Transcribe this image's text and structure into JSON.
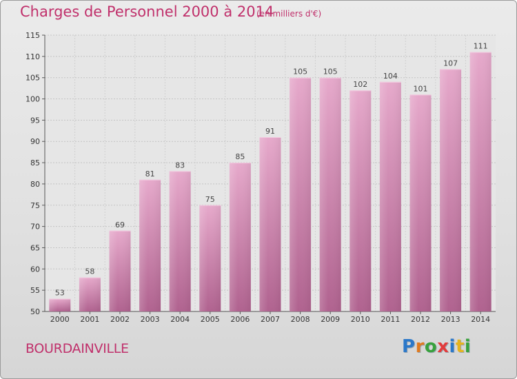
{
  "chart_data": {
    "type": "bar",
    "title": "Charges de Personnel 2000 à 2014",
    "subtitle": "(en milliers d'€)",
    "categories": [
      "2000",
      "2001",
      "2002",
      "2003",
      "2004",
      "2005",
      "2006",
      "2007",
      "2008",
      "2009",
      "2010",
      "2011",
      "2012",
      "2013",
      "2014"
    ],
    "values": [
      53,
      58,
      69,
      81,
      83,
      75,
      85,
      91,
      105,
      105,
      102,
      104,
      101,
      107,
      111
    ],
    "ylim": [
      50,
      115
    ],
    "yticks": [
      "50",
      "55",
      "60",
      "65",
      "70",
      "75",
      "80",
      "85",
      "90",
      "95",
      "100",
      "105",
      "110",
      "115"
    ],
    "grid": true,
    "bar_color": "#d98cb6"
  },
  "place_name": "BOURDAINVILLE",
  "logo": {
    "text": "Proxiti",
    "letters": [
      {
        "ch": "P",
        "color": "#2b78c9"
      },
      {
        "ch": "r",
        "color": "#e07a1f"
      },
      {
        "ch": "o",
        "color": "#37a13c"
      },
      {
        "ch": "x",
        "color": "#e23b3b"
      },
      {
        "ch": "i",
        "color": "#2b78c9"
      },
      {
        "ch": "t",
        "color": "#e6b41e"
      },
      {
        "ch": "i",
        "color": "#37a13c"
      }
    ]
  }
}
